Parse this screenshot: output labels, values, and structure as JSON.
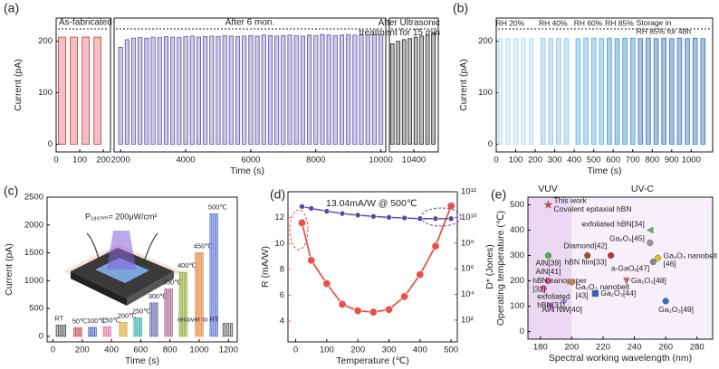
{
  "chart_data": [
    {
      "type": "pulse",
      "panel": "(a)",
      "xlabel": "Time (s)",
      "ylabel": "Current (pA)",
      "ylim": [
        -15,
        245
      ],
      "yticks": [
        0,
        100,
        200
      ],
      "segments": [
        {
          "xlim": [
            0,
            230
          ],
          "xticks": [
            0,
            100,
            200
          ],
          "series": [
            {
              "name": "As-fabricated",
              "color": "#d03030",
              "x": [
                25,
                75,
                125,
                175
              ],
              "values": [
                208,
                208,
                208,
                208
              ]
            }
          ]
        },
        {
          "xlim": [
            1800,
            10150
          ],
          "xticks": [
            2000,
            4000,
            6000,
            8000,
            10000
          ],
          "series": [
            {
              "name": "After 6 mon.",
              "color": "#5a50a8",
              "x": [
                2000,
                2200,
                2400,
                2600,
                2800,
                3000,
                3200,
                3400,
                3600,
                3800,
                4000,
                4200,
                4400,
                4600,
                4800,
                5000,
                5200,
                5400,
                5600,
                5800,
                6000,
                6200,
                6400,
                6600,
                6800,
                7000,
                7200,
                7400,
                7600,
                7800,
                8000,
                8200,
                8400,
                8600,
                8800,
                9000,
                9200,
                9400,
                9600,
                9800,
                10000
              ],
              "values": [
                188,
                203,
                206,
                207,
                206,
                208,
                207,
                209,
                208,
                207,
                209,
                210,
                208,
                209,
                210,
                209,
                211,
                210,
                209,
                210,
                211,
                210,
                212,
                211,
                210,
                211,
                212,
                211,
                210,
                212,
                211,
                213,
                212,
                211,
                212,
                213,
                212,
                213,
                212,
                213,
                213
              ]
            }
          ]
        },
        {
          "xlim": [
            10150,
            10650
          ],
          "xticks": [
            10400
          ],
          "series": [
            {
              "name": "After Ultrasonic\ntreatment for 15 min",
              "color": "#222222",
              "x": [
                10180,
                10240,
                10300,
                10360,
                10420,
                10480,
                10540,
                10600
              ],
              "values": [
                195,
                200,
                203,
                205,
                208,
                210,
                212,
                216
              ]
            }
          ]
        }
      ]
    },
    {
      "type": "pulse",
      "panel": "(b)",
      "xlabel": "Time (s)",
      "ylabel": "Current (pA)",
      "ylim": [
        -15,
        245
      ],
      "yticks": [
        0,
        100,
        200
      ],
      "xlim": [
        0,
        1110
      ],
      "xticks": [
        0,
        100,
        200,
        300,
        400,
        500,
        600,
        700,
        800,
        900,
        1000
      ],
      "series": [
        {
          "name": "RH 20%",
          "color": "#b8dbf2",
          "x": [
            20,
            60,
            100,
            140,
            180
          ],
          "values": [
            205,
            206,
            205,
            206,
            205
          ]
        },
        {
          "name": "RH 40%",
          "color": "#92c5ea",
          "x": [
            240,
            280,
            320,
            360
          ],
          "values": [
            206,
            205,
            206,
            205
          ]
        },
        {
          "name": "RH 60%",
          "color": "#6aaee0",
          "x": [
            420,
            460,
            500,
            540
          ],
          "values": [
            205,
            206,
            206,
            205
          ]
        },
        {
          "name": "RH 85%",
          "color": "#4a94d4",
          "x": [
            580,
            620,
            660,
            700
          ],
          "values": [
            206,
            205,
            206,
            206
          ]
        },
        {
          "name": "Storage in\nRH 85% for 48h",
          "color": "#3a78c0",
          "x": [
            740,
            780,
            820,
            860,
            900,
            940,
            980,
            1020,
            1060
          ],
          "values": [
            205,
            206,
            205,
            206,
            205,
            206,
            205,
            206,
            205
          ]
        }
      ]
    },
    {
      "type": "pulse",
      "panel": "(c)",
      "xlabel": "Time (s)",
      "ylabel": "Current (pA)",
      "annotation": "P₁₈₅ₙₘ= 200μW/cm²",
      "ylim": [
        -100,
        2500
      ],
      "yticks": [
        0,
        500,
        1000,
        1500,
        2000,
        2500
      ],
      "xlim": [
        -40,
        1260
      ],
      "xticks": [
        0,
        200,
        400,
        600,
        800,
        1000,
        1200
      ],
      "series": [
        {
          "name": "RT",
          "color": "#333333",
          "x": [
            30,
            55,
            80
          ],
          "values": [
            200,
            200,
            200
          ]
        },
        {
          "name": "50℃",
          "color": "#c03030",
          "x": [
            150,
            170,
            190
          ],
          "values": [
            150,
            150,
            150
          ]
        },
        {
          "name": "100℃",
          "color": "#3050c0",
          "x": [
            250,
            270,
            290
          ],
          "values": [
            160,
            160,
            160
          ]
        },
        {
          "name": "150℃",
          "color": "#e060a0",
          "x": [
            350,
            370,
            390
          ],
          "values": [
            170,
            170,
            170
          ]
        },
        {
          "name": "200℃",
          "color": "#d0a020",
          "x": [
            460,
            480,
            500
          ],
          "values": [
            250,
            250,
            250
          ]
        },
        {
          "name": "250℃",
          "color": "#20a0a0",
          "x": [
            560,
            580,
            600
          ],
          "values": [
            330,
            330,
            330
          ]
        },
        {
          "name": "300℃",
          "color": "#5050a0",
          "x": [
            670,
            690,
            710
          ],
          "values": [
            600,
            600,
            600
          ]
        },
        {
          "name": "350℃",
          "color": "#a05080",
          "x": [
            770,
            790,
            810
          ],
          "values": [
            850,
            850,
            850
          ]
        },
        {
          "name": "400℃",
          "color": "#80a020",
          "x": [
            870,
            890,
            910
          ],
          "values": [
            1150,
            1150,
            1150
          ]
        },
        {
          "name": "450℃",
          "color": "#e07020",
          "x": [
            980,
            1000,
            1020
          ],
          "values": [
            1500,
            1500,
            1500
          ]
        },
        {
          "name": "500℃",
          "color": "#4060d0",
          "x": [
            1080,
            1100,
            1120
          ],
          "values": [
            2200,
            2200,
            2200
          ]
        },
        {
          "name": "recover to RT",
          "color": "#444444",
          "x": [
            1170,
            1195,
            1220
          ],
          "values": [
            230,
            230,
            230
          ]
        }
      ]
    },
    {
      "type": "dual",
      "panel": "(d)",
      "xlabel": "Temperature (℃)",
      "ylabel": "R (mA/W)",
      "y2label": "D* (Jones)",
      "annotation": "13.04mA/W @ 500℃",
      "xlim": [
        -25,
        520
      ],
      "xticks": [
        0,
        100,
        200,
        300,
        400,
        500
      ],
      "ylim": [
        2.4,
        14
      ],
      "yticks": [
        4,
        6,
        8,
        10,
        12
      ],
      "y2lim": [
        2,
        1000000000000
      ],
      "y2scale": "log",
      "y2ticks": [
        {
          "value": 100,
          "label": "10²"
        },
        {
          "value": 10000,
          "label": "10⁴"
        },
        {
          "value": 1000000,
          "label": "10⁶"
        },
        {
          "value": 100000000,
          "label": "10⁸"
        },
        {
          "value": 10000000000,
          "label": "10¹⁰"
        },
        {
          "value": 1000000000000,
          "label": "10¹²"
        }
      ],
      "series": [
        {
          "color": "#e8524a",
          "x": [
            20,
            50,
            100,
            150,
            200,
            250,
            300,
            350,
            400,
            450,
            500
          ],
          "values": [
            11.6,
            8.7,
            6.9,
            5.3,
            4.8,
            4.7,
            4.9,
            5.9,
            7.6,
            9.8,
            12.9
          ]
        },
        {
          "axis": "y2",
          "color": "#5b4aa0",
          "x": [
            20,
            50,
            100,
            150,
            200,
            250,
            300,
            350,
            400,
            450,
            500
          ],
          "values": [
            70000000000,
            50000000000,
            30000000000,
            20000000000,
            15000000000,
            12000000000,
            10000000000,
            9000000000,
            8000000000,
            8000000000,
            8000000000
          ]
        }
      ]
    },
    {
      "type": "scatter",
      "panel": "(e)",
      "xlabel": "Spectral working wavelength (nm)",
      "ylabel": "Operating temperature (℃)",
      "regions": [
        "VUV",
        "UV-C"
      ],
      "vuv_region": [
        172,
        200
      ],
      "xlim": [
        172,
        290
      ],
      "xticks": [
        180,
        200,
        220,
        240,
        260,
        280
      ],
      "ylim": [
        -30,
        530
      ],
      "yticks": [
        0,
        100,
        200,
        300,
        400,
        500
      ],
      "labels": [
        "This work\nCovalent epitaxial hBN",
        "exfoliated hBN[34]",
        "Ga₂O₃[45]",
        "Diamond[42]",
        "hBN film[33]",
        "AlN[39]",
        "Ga₂O₃ nanobelt\n[46]",
        "a-GaOₓ[47]",
        "AlN[41]",
        "hBN nanopaper\n[32]",
        "Ga₂O₃ nanobelt\n[43]",
        "Ga₂O₃[48]",
        "Ga₂O₃[44]",
        "AlN NW[40]",
        "exfoliated\nhBN[31]",
        "Ga₂O₃[49]"
      ],
      "x": [
        185,
        250,
        250,
        225,
        210,
        185,
        255,
        252,
        185,
        182,
        200,
        235,
        215,
        195,
        186,
        260
      ],
      "values": [
        500,
        400,
        350,
        300,
        300,
        300,
        290,
        275,
        200,
        170,
        195,
        200,
        150,
        120,
        100,
        120
      ],
      "colors": [
        "#e03030",
        "#5cb85c",
        "#999999",
        "#c03030",
        "#a0522d",
        "#4caf50",
        "#e0c020",
        "#888888",
        "#e05090",
        "#e070b0",
        "#d08040",
        "#e06060",
        "#3060c0",
        "#9090e0",
        "#c080d0",
        "#3070c0"
      ],
      "markers": [
        "star",
        "triangle",
        "circle",
        "circle",
        "circle",
        "circle",
        "circle",
        "circle",
        "circle",
        "circle",
        "circle",
        "triangle-down",
        "square",
        "diamond",
        "circle",
        "circle"
      ]
    }
  ]
}
